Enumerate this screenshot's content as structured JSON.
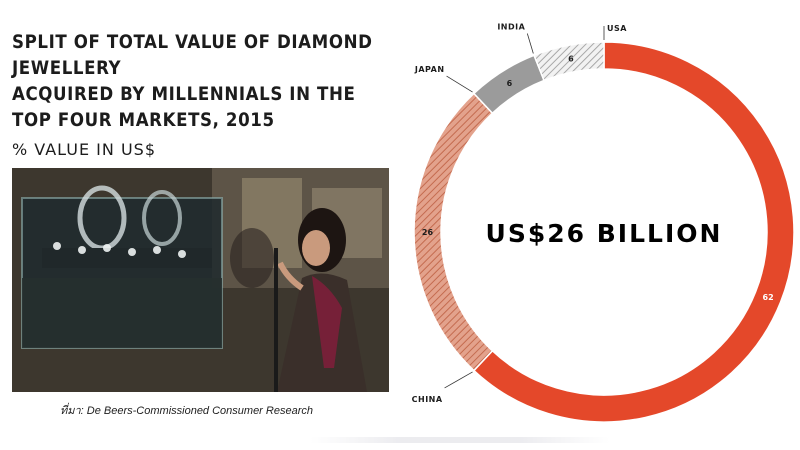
{
  "title_lines": [
    "SPLIT OF TOTAL VALUE OF DIAMOND JEWELLERY",
    "ACQUIRED BY MILLENNIALS IN THE",
    "TOP FOUR MARKETS, 2015"
  ],
  "subtitle": "% VALUE IN US$",
  "source": "ที่มา: De Beers-Commissioned Consumer Research",
  "photo": {
    "description_icon": "photo-woman-window-shopping-jewellery"
  },
  "colors": {
    "usa": "#e4482a",
    "china": "#d98a70",
    "japan": "#9b9b9b",
    "india": "#d9d9d9",
    "text": "#1c1c1c"
  },
  "chart_data": {
    "type": "pie",
    "center_label": "US$26 BILLION",
    "categories": [
      "USA",
      "CHINA",
      "JAPAN",
      "INDIA"
    ],
    "values": [
      62,
      26,
      6,
      6
    ],
    "value_labels": [
      "62",
      "26",
      "6",
      "6"
    ],
    "unit": "%",
    "legend": "none",
    "data_labels": "on-segment"
  }
}
